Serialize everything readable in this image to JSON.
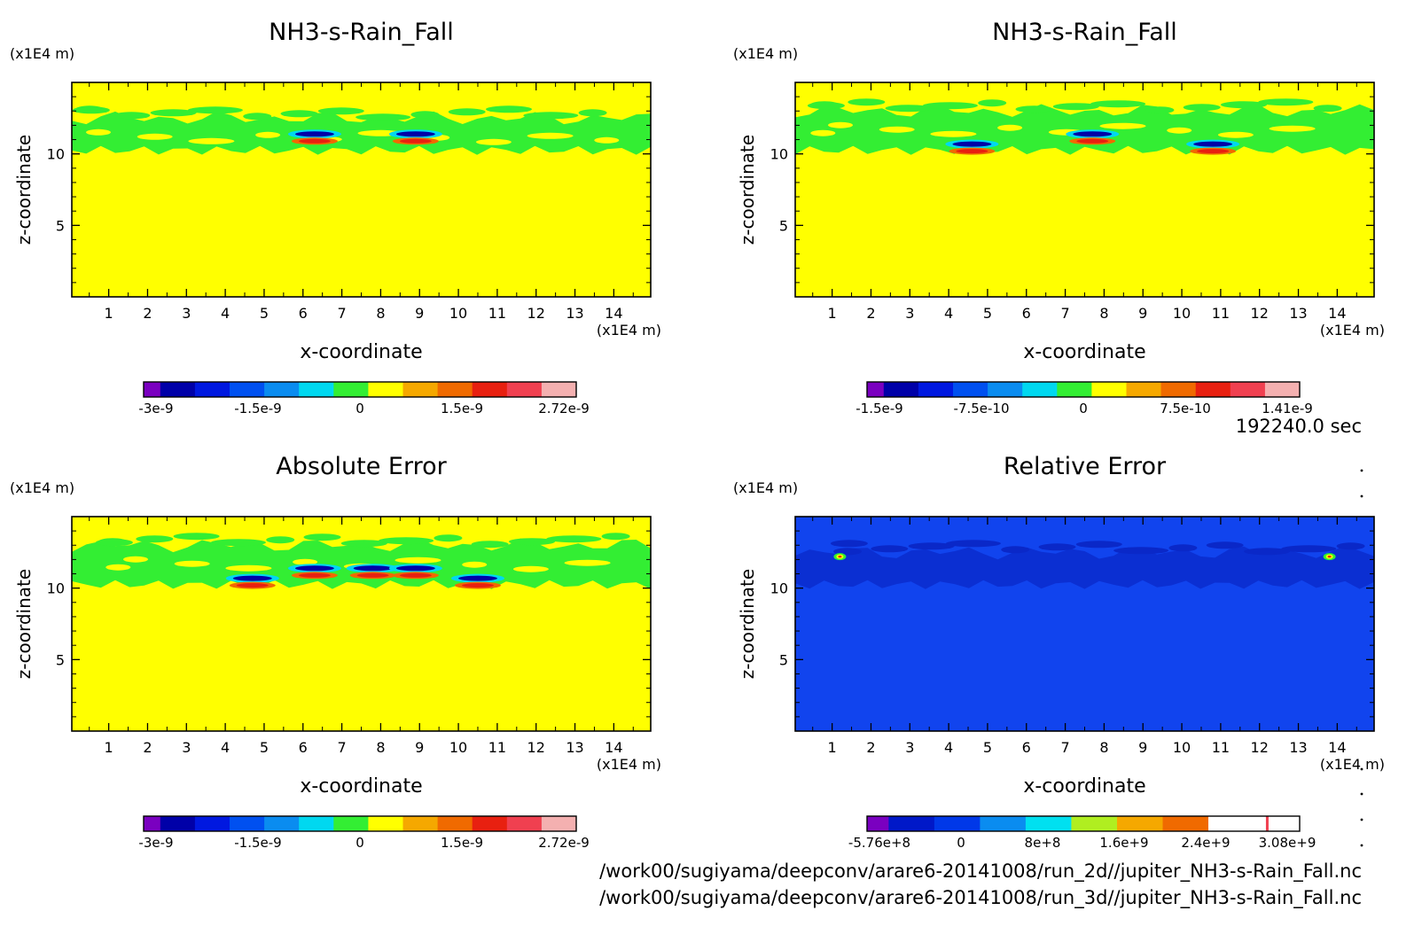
{
  "time_label": "192240.0 sec",
  "files": [
    "/work00/sugiyama/deepconv/arare6-20141008/run_2d//jupiter_NH3-s-Rain_Fall.nc",
    "/work00/sugiyama/deepconv/arare6-20141008/run_3d//jupiter_NH3-s-Rain_Fall.nc"
  ],
  "colors": {
    "field_zero": "#ffff00",
    "field_band": "#33ee33",
    "rel_bg": "#1144ee",
    "rel_band": "#0a28c8"
  },
  "chart_data": [
    {
      "type": "heatmap",
      "title": "NH3-s-Rain_Fall",
      "xlabel": "x-coordinate",
      "ylabel": "z-coordinate",
      "x_unit": "(x1E4 m)",
      "y_unit": "(x1E4 m)",
      "xlim": [
        0.05,
        14.95
      ],
      "ylim": [
        0,
        15
      ],
      "xticks": [
        "1",
        "2",
        "3",
        "4",
        "5",
        "6",
        "7",
        "8",
        "9",
        "10",
        "11",
        "12",
        "13",
        "14"
      ],
      "yticks": [
        "5",
        "10"
      ],
      "background_level": 0,
      "features": [
        {
          "kind": "band",
          "z": [
            10,
            13
          ]
        },
        {
          "kind": "dipole",
          "x": 6.3,
          "z": 11.2
        },
        {
          "kind": "dipole",
          "x": 8.9,
          "z": 11.2
        }
      ],
      "colorbar": {
        "levels": [
          "-3e-9",
          "-1.5e-9",
          "0",
          "1.5e-9",
          "2.72e-9"
        ],
        "colors": [
          "#7a00c0",
          "#0000a8",
          "#0018e0",
          "#0050f0",
          "#0a8cf0",
          "#00d8f0",
          "#33ee33",
          "#ffff00",
          "#f5a800",
          "#f06a00",
          "#e82010",
          "#f04050",
          "#f4b0b0"
        ]
      }
    },
    {
      "type": "heatmap",
      "title": "NH3-s-Rain_Fall",
      "xlabel": "x-coordinate",
      "ylabel": "z-coordinate",
      "x_unit": "(x1E4 m)",
      "y_unit": "(x1E4 m)",
      "xlim": [
        0.05,
        14.95
      ],
      "ylim": [
        0,
        15
      ],
      "xticks": [
        "1",
        "2",
        "3",
        "4",
        "5",
        "6",
        "7",
        "8",
        "9",
        "10",
        "11",
        "12",
        "13",
        "14"
      ],
      "yticks": [
        "5",
        "10"
      ],
      "background_level": 0,
      "features": [
        {
          "kind": "band",
          "z": [
            10,
            13.5
          ]
        },
        {
          "kind": "dipole",
          "x": 4.6,
          "z": 10.5
        },
        {
          "kind": "dipole",
          "x": 7.7,
          "z": 11.2
        },
        {
          "kind": "dipole",
          "x": 10.8,
          "z": 10.5
        }
      ],
      "colorbar": {
        "levels": [
          "-1.5e-9",
          "-7.5e-10",
          "0",
          "7.5e-10",
          "1.41e-9"
        ],
        "colors": [
          "#7a00c0",
          "#0000a8",
          "#0018e0",
          "#0050f0",
          "#0a8cf0",
          "#00d8f0",
          "#33ee33",
          "#ffff00",
          "#f5a800",
          "#f06a00",
          "#e82010",
          "#f04050",
          "#f4b0b0"
        ]
      }
    },
    {
      "type": "heatmap",
      "title": "Absolute Error",
      "xlabel": "x-coordinate",
      "ylabel": "z-coordinate",
      "x_unit": "(x1E4 m)",
      "y_unit": "(x1E4 m)",
      "xlim": [
        0.05,
        14.95
      ],
      "ylim": [
        0,
        15
      ],
      "xticks": [
        "1",
        "2",
        "3",
        "4",
        "5",
        "6",
        "7",
        "8",
        "9",
        "10",
        "11",
        "12",
        "13",
        "14"
      ],
      "yticks": [
        "5",
        "10"
      ],
      "background_level": 0,
      "features": [
        {
          "kind": "band",
          "z": [
            10,
            13.5
          ]
        },
        {
          "kind": "dipole",
          "x": 4.7,
          "z": 10.5
        },
        {
          "kind": "dipole",
          "x": 6.3,
          "z": 11.2
        },
        {
          "kind": "dipole",
          "x": 7.8,
          "z": 11.2
        },
        {
          "kind": "dipole",
          "x": 8.9,
          "z": 11.2
        },
        {
          "kind": "dipole",
          "x": 10.5,
          "z": 10.5
        }
      ],
      "colorbar": {
        "levels": [
          "-3e-9",
          "-1.5e-9",
          "0",
          "1.5e-9",
          "2.72e-9"
        ],
        "colors": [
          "#7a00c0",
          "#0000a8",
          "#0018e0",
          "#0050f0",
          "#0a8cf0",
          "#00d8f0",
          "#33ee33",
          "#ffff00",
          "#f5a800",
          "#f06a00",
          "#e82010",
          "#f04050",
          "#f4b0b0"
        ]
      }
    },
    {
      "type": "heatmap",
      "title": "Relative Error",
      "xlabel": "x-coordinate",
      "ylabel": "z-coordinate",
      "x_unit": "(x1E4 m)",
      "y_unit": "(x1E4 m)",
      "xlim": [
        0.05,
        14.95
      ],
      "ylim": [
        0,
        15
      ],
      "xticks": [
        "1",
        "2",
        "3",
        "4",
        "5",
        "6",
        "7",
        "8",
        "9",
        "10",
        "11",
        "12",
        "13",
        "14"
      ],
      "yticks": [
        "5",
        "10"
      ],
      "background_level": 0,
      "features": [
        {
          "kind": "band",
          "z": [
            10,
            13
          ]
        },
        {
          "kind": "spot",
          "x": 1.2,
          "z": 12.2
        },
        {
          "kind": "spot",
          "x": 13.8,
          "z": 12.2
        }
      ],
      "colorbar": {
        "levels": [
          "-5.76e+8",
          "0",
          "8e+8",
          "1.6e+9",
          "2.4e+9",
          "3.08e+9"
        ],
        "colors": [
          "#7a00c0",
          "#0018c8",
          "#0038e8",
          "#0a8cf0",
          "#00e0f0",
          "#b0ee20",
          "#f5a800",
          "#f06a00",
          "#ffffff",
          "#ffffff"
        ]
      }
    }
  ]
}
